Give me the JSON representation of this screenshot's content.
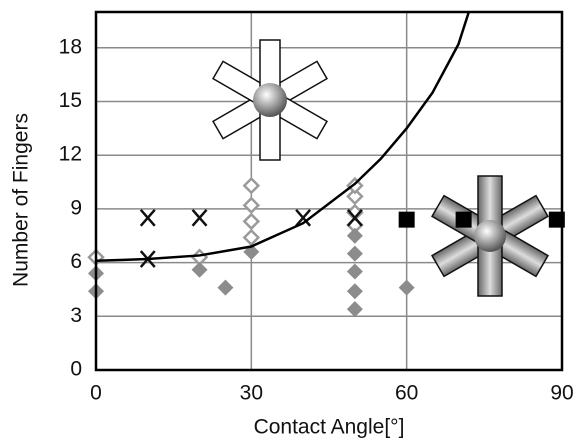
{
  "chart_data": {
    "type": "scatter",
    "xlabel": "Contact Angle[°]",
    "ylabel": "Number of Fingers",
    "xlim": [
      0,
      90
    ],
    "ylim": [
      0,
      20
    ],
    "xticks": [
      0,
      30,
      60,
      90
    ],
    "yticks": [
      0,
      3,
      6,
      9,
      12,
      15,
      18
    ],
    "grid": true,
    "series": [
      {
        "marker": "diamond-open",
        "color": "#9a9a9a",
        "x": [
          0,
          20,
          30,
          30,
          30,
          30,
          50,
          50,
          50,
          50
        ],
        "values": [
          6.3,
          6.3,
          7.4,
          8.3,
          9.2,
          10.3,
          8.1,
          8.8,
          9.7,
          10.3
        ]
      },
      {
        "marker": "diamond",
        "color": "#8c8c8c",
        "x": [
          0,
          0,
          20,
          25,
          30,
          50,
          50,
          50,
          50,
          50,
          60
        ],
        "values": [
          5.4,
          4.4,
          5.6,
          4.6,
          6.6,
          7.5,
          6.5,
          5.5,
          4.4,
          3.4,
          4.6
        ]
      },
      {
        "marker": "cross",
        "color": "#111111",
        "x": [
          10,
          20,
          40,
          50,
          10
        ],
        "values": [
          8.5,
          8.5,
          8.5,
          8.5,
          6.2
        ]
      },
      {
        "marker": "square",
        "color": "#000000",
        "x": [
          60,
          71,
          89
        ],
        "values": [
          8.4,
          8.4,
          8.4
        ]
      },
      {
        "marker": "line",
        "color": "#000000",
        "x": [
          0,
          10,
          20,
          30,
          40,
          50,
          55,
          60,
          65,
          70,
          72
        ],
        "values": [
          6.1,
          6.2,
          6.4,
          6.9,
          8.2,
          10.4,
          11.8,
          13.5,
          15.5,
          18.2,
          20
        ]
      }
    ]
  }
}
